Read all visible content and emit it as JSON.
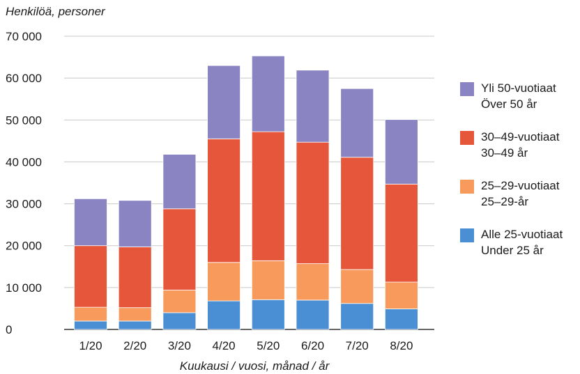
{
  "chart_data": {
    "type": "bar",
    "stacked": true,
    "ylabel": "Henkilöä, personer",
    "xlabel": "Kuukausi / vuosi, månad / år",
    "ylim": [
      0,
      70000
    ],
    "yticks": [
      "0",
      "10 000",
      "20 000",
      "30 000",
      "40 000",
      "50 000",
      "60 000",
      "70 000"
    ],
    "categories": [
      "1/20",
      "2/20",
      "3/20",
      "4/20",
      "5/20",
      "6/20",
      "7/20",
      "8/20"
    ],
    "grid": true,
    "legend_position": "right",
    "series": [
      {
        "name": "Alle 25-vuotiaat",
        "name_sv": "Under 25 år",
        "color": "#4a8fd4",
        "values": [
          2000,
          2000,
          4000,
          6800,
          7100,
          7000,
          6200,
          4900
        ]
      },
      {
        "name": "25–29-vuotiaat",
        "name_sv": "25–29-år",
        "color": "#f79a5c",
        "values": [
          3300,
          3200,
          5400,
          9200,
          9300,
          8700,
          8100,
          6400
        ]
      },
      {
        "name": "30–49-vuotiaat",
        "name_sv": "30–49 år",
        "color": "#e6563a",
        "values": [
          14700,
          14500,
          19400,
          29500,
          30800,
          29000,
          26800,
          23400
        ]
      },
      {
        "name": "Yli 50-vuotiaat",
        "name_sv": "Över 50 år",
        "color": "#8b84c2",
        "values": [
          11200,
          11100,
          13000,
          17500,
          18100,
          17200,
          16400,
          15400
        ]
      }
    ]
  }
}
